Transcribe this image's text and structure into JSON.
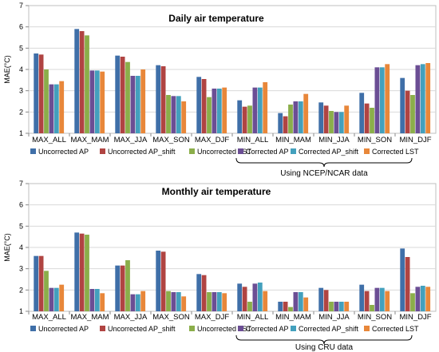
{
  "colors": {
    "series": [
      "#3f6fa8",
      "#b04442",
      "#8bae4a",
      "#6b4e94",
      "#43a0bd",
      "#e8873a"
    ],
    "grid": "#d9d9d9",
    "axis": "#888888"
  },
  "chart_data": [
    {
      "type": "bar",
      "title": "Daily air temperature",
      "ylabel": "MAE(°C)",
      "ylim": [
        1,
        7
      ],
      "yticks": [
        1,
        2,
        3,
        4,
        5,
        6,
        7
      ],
      "grid": true,
      "legend_position": "bottom",
      "categories": [
        "MAX_ALL",
        "MAX_MAM",
        "MAX_JJA",
        "MAX_SON",
        "MAX_DJF",
        "MIN_ALL",
        "MIN_MAM",
        "MIN_JJA",
        "MIN_SON",
        "MIN_DJF"
      ],
      "series": [
        {
          "name": "Uncorrected AP",
          "values": [
            4.75,
            5.9,
            4.65,
            4.2,
            3.65,
            2.55,
            1.95,
            2.45,
            2.9,
            3.6
          ]
        },
        {
          "name": "Uncorrected AP_shift",
          "values": [
            4.7,
            5.8,
            4.6,
            4.15,
            3.55,
            2.25,
            1.8,
            2.3,
            2.4,
            3.0
          ]
        },
        {
          "name": "Uncorrected LST",
          "values": [
            4.0,
            5.6,
            4.35,
            2.8,
            2.7,
            2.3,
            2.35,
            2.05,
            2.2,
            2.8
          ]
        },
        {
          "name": "Corrected AP",
          "values": [
            3.3,
            3.95,
            3.7,
            2.75,
            3.1,
            3.15,
            2.5,
            2.0,
            4.1,
            4.2
          ]
        },
        {
          "name": "Corrected AP_shift",
          "values": [
            3.3,
            3.95,
            3.7,
            2.75,
            3.1,
            3.15,
            2.5,
            2.0,
            4.1,
            4.25
          ]
        },
        {
          "name": "Corrected LST",
          "values": [
            3.45,
            3.9,
            4.0,
            2.5,
            3.15,
            3.4,
            2.85,
            2.3,
            4.25,
            4.3
          ]
        }
      ],
      "bracket_label": "Using NCEP/NCAR data"
    },
    {
      "type": "bar",
      "title": "Monthly air temperature",
      "ylabel": "MAE(°C)",
      "ylim": [
        1,
        7
      ],
      "yticks": [
        1,
        2,
        3,
        4,
        5,
        6,
        7
      ],
      "grid": true,
      "legend_position": "bottom",
      "categories": [
        "MAX_ALL",
        "MAX_MAM",
        "MAX_JJA",
        "MAX_SON",
        "MAX_DJF",
        "MIN_ALL",
        "MIN_MAM",
        "MIN_JJA",
        "MIN_SON",
        "MIN_DJF"
      ],
      "series": [
        {
          "name": "Uncorrected AP",
          "values": [
            3.6,
            4.7,
            3.15,
            3.85,
            2.75,
            2.3,
            1.45,
            2.1,
            2.25,
            3.95
          ]
        },
        {
          "name": "Uncorrected AP_shift",
          "values": [
            3.6,
            4.65,
            3.15,
            3.8,
            2.7,
            2.15,
            1.45,
            2.0,
            1.95,
            3.55
          ]
        },
        {
          "name": "Uncorrected LST",
          "values": [
            2.9,
            4.6,
            3.4,
            1.95,
            1.9,
            1.45,
            1.2,
            1.45,
            1.3,
            1.85
          ]
        },
        {
          "name": "Corrected AP",
          "values": [
            2.1,
            2.05,
            1.8,
            1.9,
            1.9,
            2.3,
            1.9,
            1.45,
            2.1,
            2.15
          ]
        },
        {
          "name": "Corrected AP_shift",
          "values": [
            2.1,
            2.05,
            1.8,
            1.9,
            1.9,
            2.35,
            1.9,
            1.45,
            2.1,
            2.2
          ]
        },
        {
          "name": "Corrected LST",
          "values": [
            2.25,
            1.85,
            1.95,
            1.7,
            1.85,
            1.95,
            1.65,
            1.45,
            1.95,
            2.15
          ]
        }
      ],
      "bracket_label": "Using CRU data"
    }
  ]
}
